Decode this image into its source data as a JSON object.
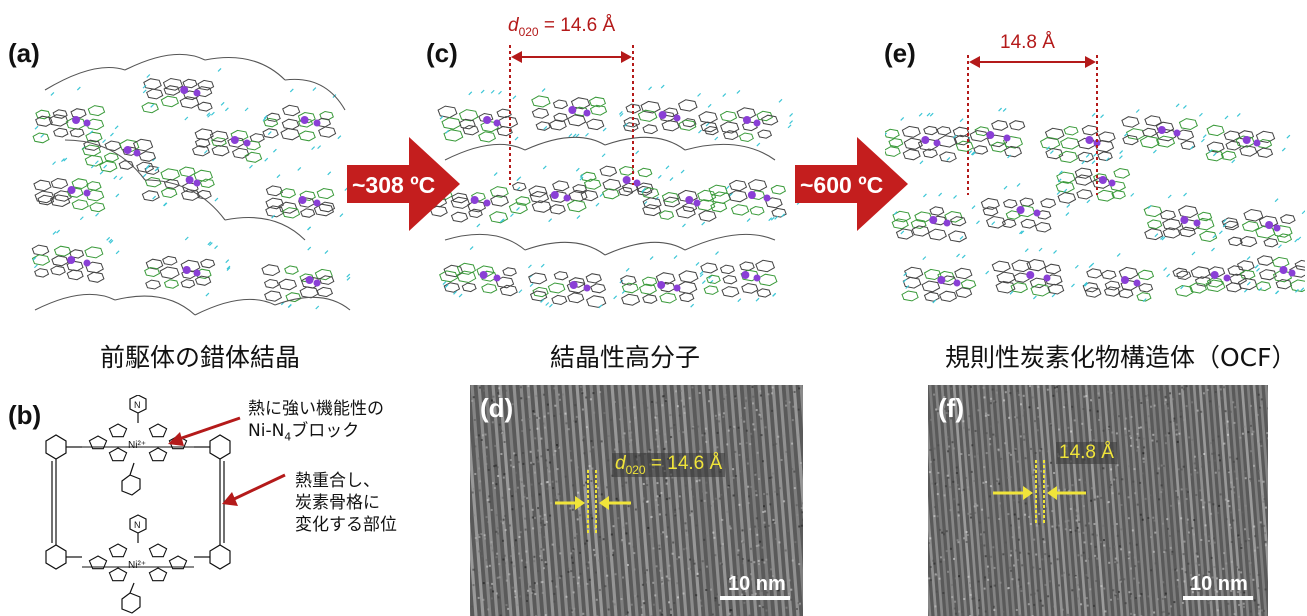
{
  "panels": {
    "a": {
      "label": "(a)",
      "caption": "前駆体の錯体結晶"
    },
    "b": {
      "label": "(b)",
      "note1": "熱に強い機能性の",
      "note2_pre": "Ni-N",
      "note2_sub": "4",
      "note2_post": "ブロック",
      "note3_line1": "熱重合し、",
      "note3_line2": "炭素骨格に",
      "note3_line3": "変化する部位"
    },
    "c": {
      "label": "(c)",
      "caption": "結晶性高分子",
      "dim_var": "d",
      "dim_sub": "020",
      "dim_val": " = 14.6 Å"
    },
    "d": {
      "label": "(d)",
      "dim_var": "d",
      "dim_sub": "020",
      "dim_val": " = 14.6 Å",
      "scale": "10 nm"
    },
    "e": {
      "label": "(e)",
      "caption": "規則性炭素化物構造体（OCF）",
      "dim": "14.8 Å"
    },
    "f": {
      "label": "(f)",
      "dim": "14.8 Å",
      "scale": "10 nm"
    }
  },
  "arrows": {
    "step1": "~308 ºC",
    "step2": "~600 ºC"
  },
  "structure": {
    "ni_label": "Ni²⁺",
    "n_label": "N"
  },
  "colors": {
    "arrow": "#c41e1e",
    "dim_red": "#b41a1a",
    "dim_yellow": "#f0e43a",
    "metal": "#8a3fd6",
    "bond": "#333333",
    "nitrogen": "#3a9a3a"
  }
}
